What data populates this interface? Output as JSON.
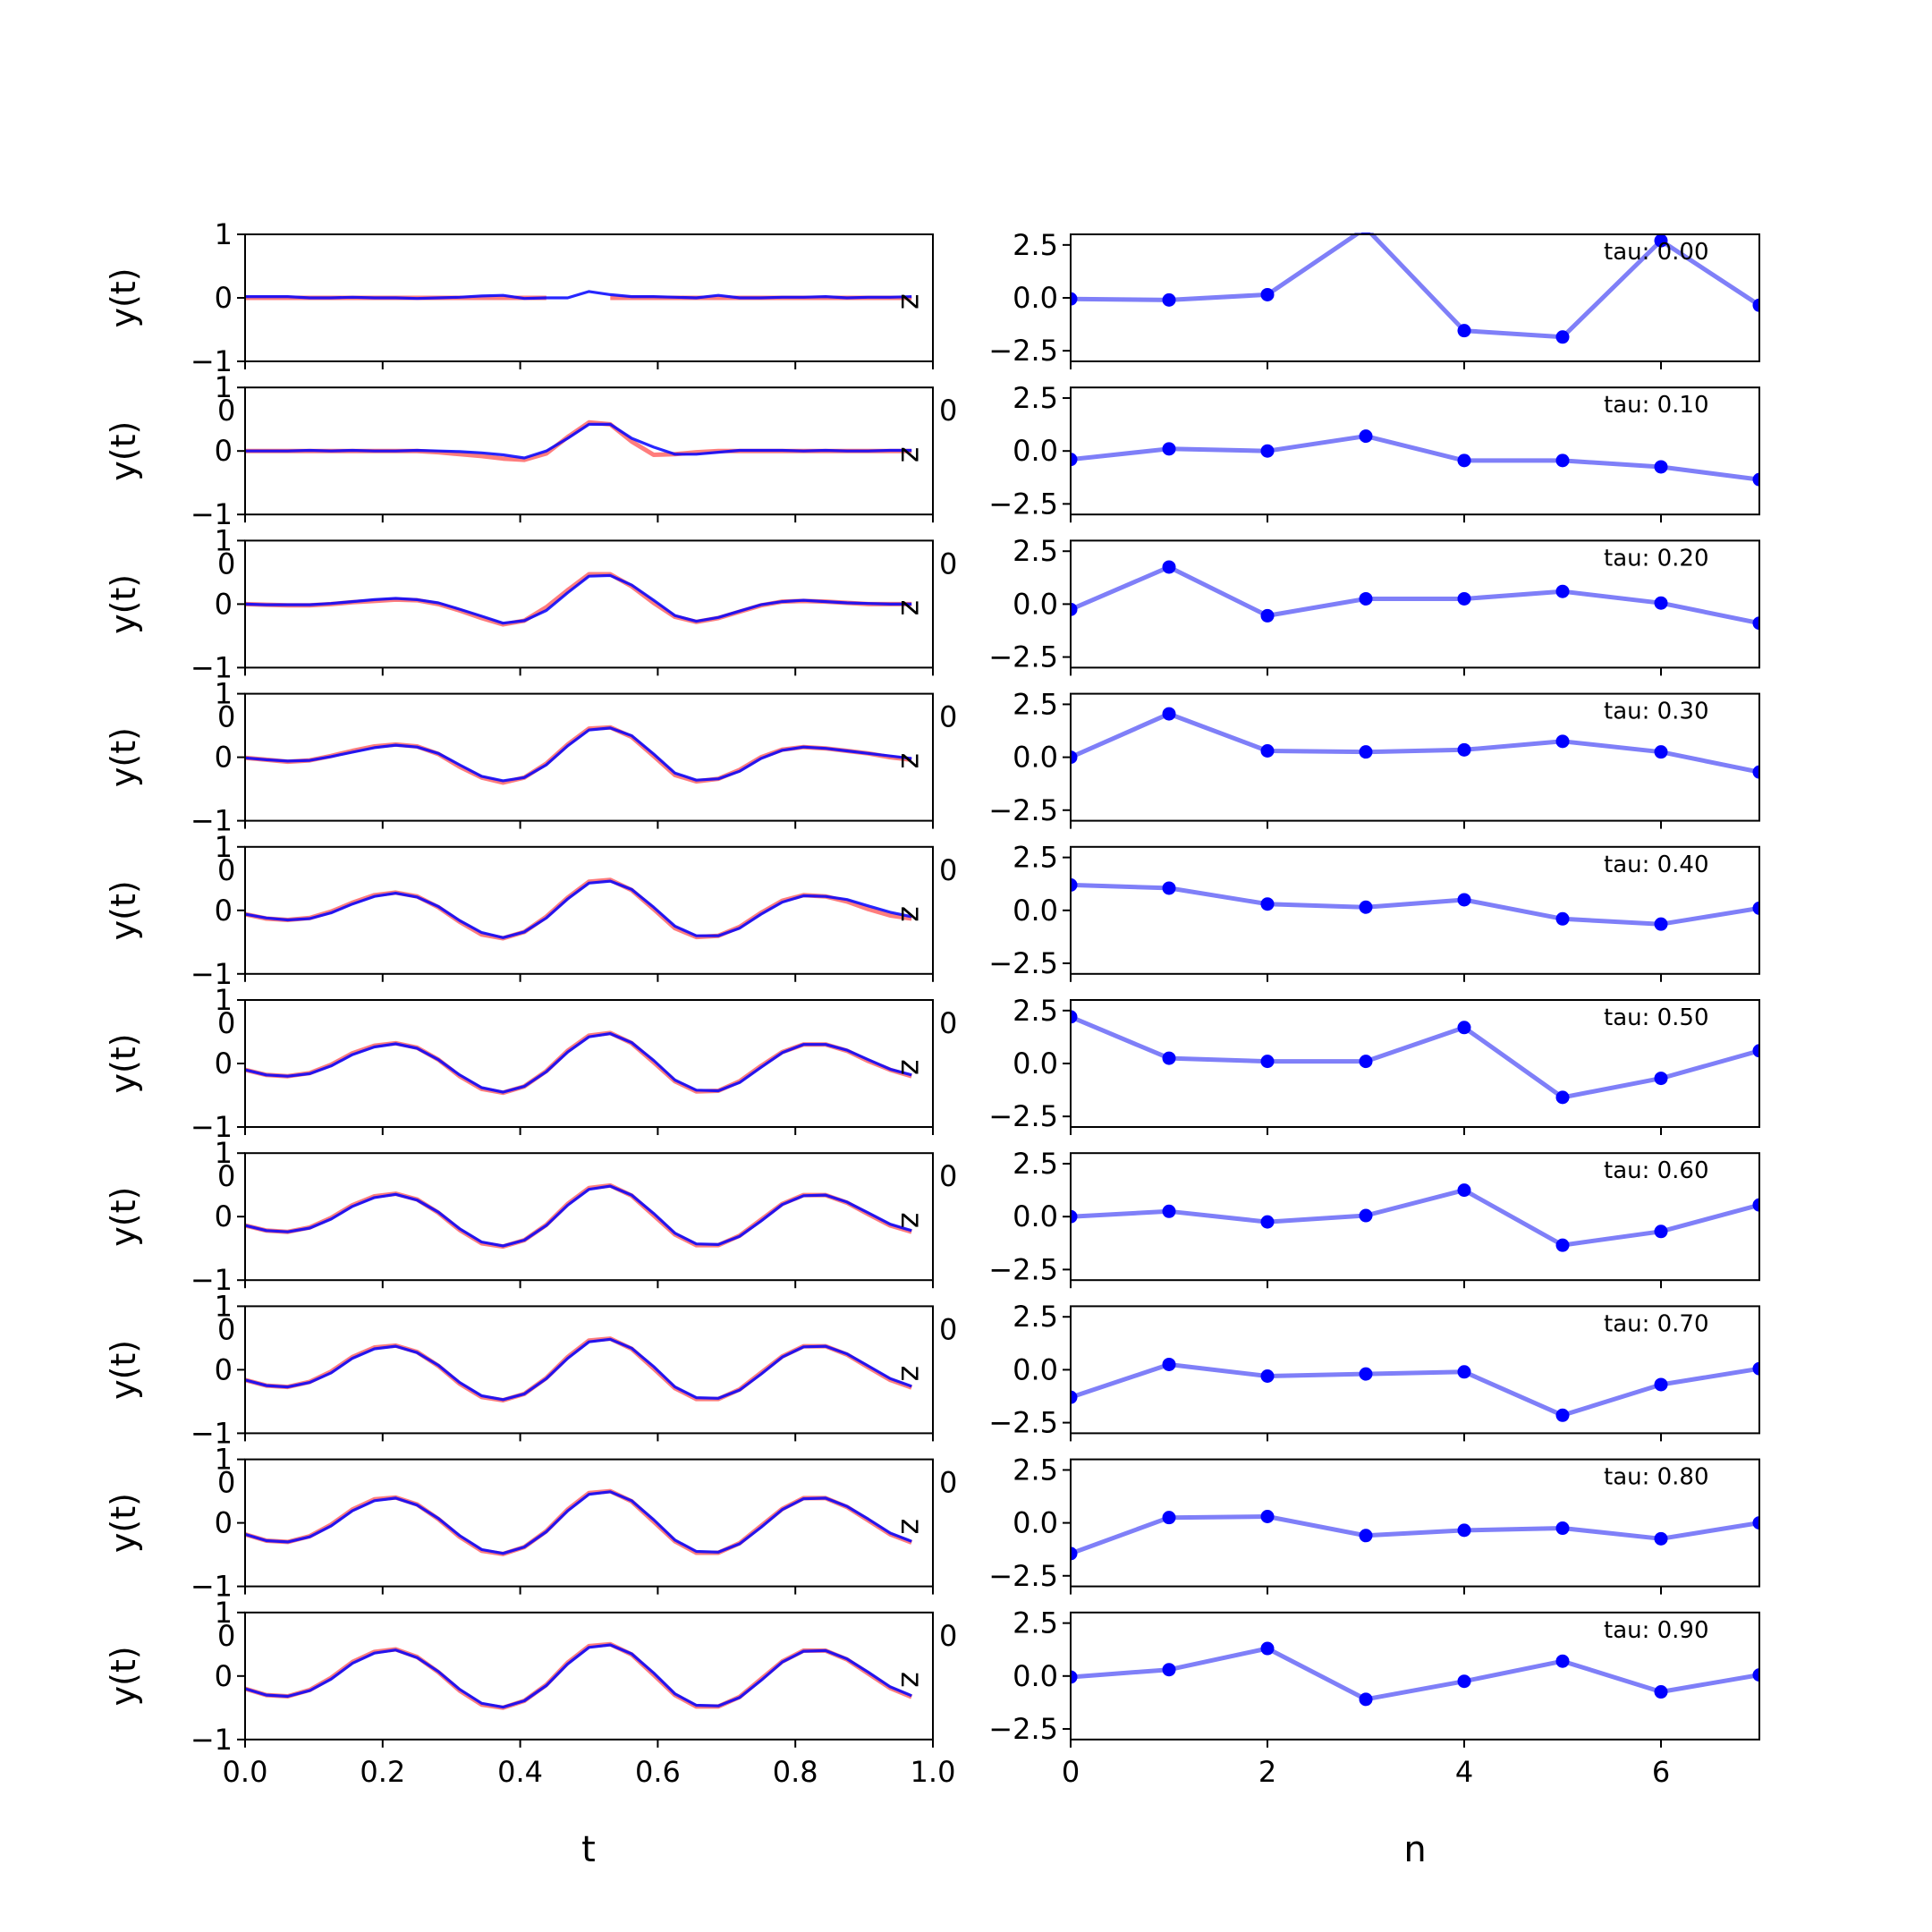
{
  "colors": {
    "reference": "#ff6f6f",
    "signal": "#0000ff",
    "coeff_line": "#7f7ff8",
    "coeff_point": "#0000ff"
  },
  "left_column": {
    "ylabel": "y(t)",
    "xlabel": "t",
    "yticks": [
      "−1",
      "0",
      "1"
    ],
    "xticks": [
      "0.0",
      "0.2",
      "0.4",
      "0.6",
      "0.8",
      "1.0"
    ],
    "overlap_tick": "0",
    "side_label": "z"
  },
  "right_column": {
    "xlabel": "n",
    "yticks": [
      "−2.5",
      "0.0",
      "2.5"
    ],
    "xticks": [
      "0",
      "2",
      "4",
      "6"
    ]
  },
  "chart_data": [
    {
      "type": "line",
      "panel": "time-domain",
      "xlabel": "t",
      "ylabel": "y(t)",
      "xlim": [
        0,
        1.0
      ],
      "ylim": [
        -1,
        1
      ],
      "x": [
        0.0,
        0.031,
        0.062,
        0.094,
        0.125,
        0.156,
        0.188,
        0.219,
        0.25,
        0.281,
        0.312,
        0.344,
        0.375,
        0.406,
        0.438,
        0.469,
        0.5,
        0.531,
        0.562,
        0.594,
        0.625,
        0.656,
        0.688,
        0.719,
        0.75,
        0.781,
        0.812,
        0.844,
        0.875,
        0.906,
        0.938,
        0.969
      ],
      "rows": [
        {
          "tau": "tau: 0.00",
          "reference": [
            0,
            0,
            0,
            0,
            0,
            0,
            0,
            0,
            0,
            0,
            0,
            0,
            0,
            0,
            0,
            null,
            null,
            0,
            0,
            0,
            0,
            0,
            0,
            0,
            0,
            0,
            0,
            0,
            0,
            0,
            0,
            0
          ],
          "signal": [
            0.02,
            0.02,
            0.02,
            0.0,
            0.0,
            0.01,
            0.0,
            0.0,
            -0.01,
            0.0,
            0.01,
            0.03,
            0.04,
            -0.01,
            0.0,
            0.0,
            0.1,
            0.05,
            0.02,
            0.02,
            0.01,
            0.0,
            0.04,
            0.0,
            0.0,
            0.01,
            0.01,
            0.02,
            0.0,
            0.01,
            0.01,
            0.02
          ]
        },
        {
          "tau": "tau: 0.10",
          "reference": [
            0,
            0,
            0,
            0,
            0,
            0,
            0,
            0,
            0,
            -0.02,
            -0.05,
            -0.08,
            -0.12,
            -0.14,
            -0.04,
            0.22,
            0.45,
            0.42,
            0.15,
            -0.06,
            -0.05,
            -0.02,
            0,
            0,
            0,
            0,
            0,
            0,
            0,
            0,
            0,
            0
          ],
          "signal": [
            0,
            0,
            0,
            0.01,
            0,
            0.01,
            0,
            0,
            0.01,
            0,
            -0.01,
            -0.03,
            -0.06,
            -0.11,
            0,
            0.2,
            0.42,
            0.42,
            0.2,
            0.06,
            -0.05,
            -0.05,
            -0.02,
            0.01,
            0.01,
            0.01,
            0,
            0.01,
            0,
            0,
            0.01,
            0.01
          ]
        },
        {
          "tau": "tau: 0.20",
          "reference": [
            0,
            -0.01,
            -0.02,
            -0.02,
            0,
            0.03,
            0.05,
            0.07,
            0.06,
            0.0,
            -0.1,
            -0.22,
            -0.32,
            -0.26,
            -0.05,
            0.22,
            0.47,
            0.47,
            0.28,
            0.02,
            -0.2,
            -0.28,
            -0.22,
            -0.12,
            -0.02,
            0.04,
            0.05,
            0.04,
            0.02,
            0.0,
            0.0,
            0.0
          ],
          "signal": [
            0,
            -0.01,
            -0.01,
            -0.01,
            0.01,
            0.04,
            0.07,
            0.09,
            0.07,
            0.02,
            -0.08,
            -0.19,
            -0.3,
            -0.26,
            -0.1,
            0.18,
            0.44,
            0.45,
            0.3,
            0.06,
            -0.18,
            -0.27,
            -0.21,
            -0.11,
            -0.01,
            0.04,
            0.06,
            0.04,
            0.02,
            0.01,
            0.0,
            0.0
          ]
        },
        {
          "tau": "tau: 0.30",
          "reference": [
            -0.01,
            -0.04,
            -0.07,
            -0.05,
            0.02,
            0.1,
            0.17,
            0.2,
            0.17,
            0.05,
            -0.15,
            -0.32,
            -0.4,
            -0.32,
            -0.1,
            0.2,
            0.45,
            0.47,
            0.32,
            0.02,
            -0.28,
            -0.38,
            -0.34,
            -0.2,
            0.0,
            0.12,
            0.16,
            0.14,
            0.1,
            0.06,
            0.0,
            -0.04
          ],
          "signal": [
            -0.01,
            -0.04,
            -0.06,
            -0.05,
            0.01,
            0.08,
            0.15,
            0.19,
            0.16,
            0.06,
            -0.12,
            -0.3,
            -0.37,
            -0.32,
            -0.12,
            0.18,
            0.43,
            0.46,
            0.34,
            0.05,
            -0.25,
            -0.36,
            -0.34,
            -0.22,
            -0.02,
            0.11,
            0.16,
            0.14,
            0.1,
            0.06,
            0.02,
            -0.02
          ]
        },
        {
          "tau": "tau: 0.40",
          "reference": [
            -0.06,
            -0.13,
            -0.15,
            -0.12,
            -0.02,
            0.12,
            0.24,
            0.28,
            0.22,
            0.05,
            -0.18,
            -0.38,
            -0.44,
            -0.34,
            -0.1,
            0.2,
            0.45,
            0.48,
            0.32,
            0.02,
            -0.28,
            -0.42,
            -0.4,
            -0.26,
            -0.04,
            0.15,
            0.24,
            0.22,
            0.14,
            0.02,
            -0.08,
            -0.13
          ],
          "signal": [
            -0.06,
            -0.12,
            -0.15,
            -0.13,
            -0.04,
            0.1,
            0.22,
            0.27,
            0.21,
            0.06,
            -0.16,
            -0.35,
            -0.43,
            -0.34,
            -0.12,
            0.18,
            0.43,
            0.46,
            0.33,
            0.05,
            -0.25,
            -0.4,
            -0.4,
            -0.28,
            -0.06,
            0.13,
            0.23,
            0.22,
            0.17,
            0.07,
            -0.03,
            -0.1
          ]
        },
        {
          "tau": "tau: 0.50",
          "reference": [
            -0.1,
            -0.18,
            -0.2,
            -0.15,
            -0.02,
            0.16,
            0.28,
            0.32,
            0.25,
            0.06,
            -0.2,
            -0.4,
            -0.46,
            -0.36,
            -0.12,
            0.2,
            0.44,
            0.48,
            0.32,
            0.02,
            -0.28,
            -0.44,
            -0.43,
            -0.28,
            -0.04,
            0.18,
            0.3,
            0.3,
            0.2,
            0.04,
            -0.1,
            -0.2
          ],
          "signal": [
            -0.1,
            -0.18,
            -0.2,
            -0.16,
            -0.04,
            0.14,
            0.26,
            0.31,
            0.24,
            0.06,
            -0.18,
            -0.38,
            -0.45,
            -0.36,
            -0.13,
            0.18,
            0.42,
            0.47,
            0.33,
            0.05,
            -0.26,
            -0.42,
            -0.43,
            -0.3,
            -0.06,
            0.17,
            0.3,
            0.3,
            0.21,
            0.06,
            -0.09,
            -0.18
          ]
        },
        {
          "tau": "tau: 0.60",
          "reference": [
            -0.14,
            -0.22,
            -0.24,
            -0.17,
            -0.02,
            0.18,
            0.32,
            0.36,
            0.27,
            0.06,
            -0.21,
            -0.42,
            -0.47,
            -0.37,
            -0.13,
            0.2,
            0.45,
            0.49,
            0.33,
            0.02,
            -0.28,
            -0.45,
            -0.45,
            -0.3,
            -0.05,
            0.2,
            0.34,
            0.34,
            0.22,
            0.04,
            -0.14,
            -0.24
          ],
          "signal": [
            -0.14,
            -0.22,
            -0.24,
            -0.18,
            -0.04,
            0.16,
            0.3,
            0.35,
            0.26,
            0.07,
            -0.19,
            -0.4,
            -0.46,
            -0.37,
            -0.14,
            0.18,
            0.43,
            0.48,
            0.34,
            0.05,
            -0.26,
            -0.43,
            -0.44,
            -0.31,
            -0.07,
            0.19,
            0.33,
            0.34,
            0.23,
            0.06,
            -0.12,
            -0.22
          ]
        },
        {
          "tau": "tau: 0.70",
          "reference": [
            -0.16,
            -0.25,
            -0.27,
            -0.19,
            -0.03,
            0.2,
            0.35,
            0.38,
            0.28,
            0.06,
            -0.22,
            -0.43,
            -0.48,
            -0.38,
            -0.13,
            0.2,
            0.46,
            0.49,
            0.33,
            0.02,
            -0.29,
            -0.46,
            -0.46,
            -0.31,
            -0.05,
            0.21,
            0.37,
            0.37,
            0.24,
            0.04,
            -0.16,
            -0.28
          ],
          "signal": [
            -0.16,
            -0.25,
            -0.27,
            -0.2,
            -0.05,
            0.18,
            0.33,
            0.37,
            0.27,
            0.07,
            -0.2,
            -0.41,
            -0.47,
            -0.38,
            -0.14,
            0.18,
            0.44,
            0.48,
            0.34,
            0.05,
            -0.27,
            -0.44,
            -0.45,
            -0.32,
            -0.07,
            0.2,
            0.36,
            0.37,
            0.25,
            0.06,
            -0.14,
            -0.26
          ]
        },
        {
          "tau": "tau: 0.80",
          "reference": [
            -0.18,
            -0.28,
            -0.3,
            -0.21,
            -0.03,
            0.21,
            0.37,
            0.4,
            0.29,
            0.06,
            -0.22,
            -0.44,
            -0.49,
            -0.38,
            -0.13,
            0.21,
            0.47,
            0.5,
            0.34,
            0.02,
            -0.29,
            -0.47,
            -0.47,
            -0.32,
            -0.05,
            0.22,
            0.39,
            0.39,
            0.25,
            0.04,
            -0.18,
            -0.31
          ],
          "signal": [
            -0.18,
            -0.28,
            -0.3,
            -0.22,
            -0.05,
            0.19,
            0.35,
            0.39,
            0.28,
            0.07,
            -0.2,
            -0.42,
            -0.48,
            -0.38,
            -0.14,
            0.19,
            0.45,
            0.49,
            0.35,
            0.05,
            -0.27,
            -0.45,
            -0.46,
            -0.33,
            -0.07,
            0.21,
            0.38,
            0.39,
            0.26,
            0.06,
            -0.16,
            -0.29
          ]
        },
        {
          "tau": "tau: 0.90",
          "reference": [
            -0.2,
            -0.3,
            -0.32,
            -0.22,
            -0.03,
            0.22,
            0.38,
            0.42,
            0.3,
            0.06,
            -0.23,
            -0.45,
            -0.5,
            -0.39,
            -0.14,
            0.21,
            0.47,
            0.5,
            0.34,
            0.02,
            -0.3,
            -0.48,
            -0.48,
            -0.33,
            -0.05,
            0.23,
            0.4,
            0.4,
            0.26,
            0.04,
            -0.19,
            -0.33
          ],
          "signal": [
            -0.2,
            -0.3,
            -0.32,
            -0.23,
            -0.05,
            0.2,
            0.36,
            0.41,
            0.29,
            0.07,
            -0.21,
            -0.43,
            -0.49,
            -0.39,
            -0.15,
            0.19,
            0.45,
            0.49,
            0.35,
            0.05,
            -0.28,
            -0.46,
            -0.47,
            -0.34,
            -0.07,
            0.22,
            0.39,
            0.4,
            0.27,
            0.06,
            -0.17,
            -0.31
          ]
        }
      ]
    },
    {
      "type": "line",
      "panel": "coefficients",
      "xlabel": "n",
      "xlim": [
        0,
        7
      ],
      "ylim": [
        -3,
        3
      ],
      "x": [
        0,
        1,
        2,
        3,
        4,
        5,
        6,
        7
      ],
      "rows": [
        {
          "tau": "tau: 0.00",
          "values": [
            -0.05,
            -0.1,
            0.15,
            3.3,
            -1.55,
            -1.85,
            2.7,
            -0.35
          ]
        },
        {
          "tau": "tau: 0.10",
          "values": [
            -0.4,
            0.1,
            0.0,
            0.7,
            -0.45,
            -0.45,
            -0.75,
            -1.35
          ]
        },
        {
          "tau": "tau: 0.20",
          "values": [
            -0.25,
            1.75,
            -0.55,
            0.25,
            0.25,
            0.6,
            0.05,
            -0.9
          ]
        },
        {
          "tau": "tau: 0.30",
          "values": [
            0.0,
            2.05,
            0.3,
            0.25,
            0.35,
            0.75,
            0.25,
            -0.7
          ]
        },
        {
          "tau": "tau: 0.40",
          "values": [
            1.2,
            1.05,
            0.3,
            0.15,
            0.5,
            -0.4,
            -0.65,
            0.1
          ]
        },
        {
          "tau": "tau: 0.50",
          "values": [
            2.2,
            0.25,
            0.1,
            0.1,
            1.7,
            -1.6,
            -0.7,
            0.6
          ]
        },
        {
          "tau": "tau: 0.60",
          "values": [
            0.0,
            0.25,
            -0.25,
            0.05,
            1.25,
            -1.35,
            -0.7,
            0.55
          ]
        },
        {
          "tau": "tau: 0.70",
          "values": [
            -1.3,
            0.25,
            -0.3,
            -0.2,
            -0.1,
            -2.15,
            -0.7,
            0.05
          ]
        },
        {
          "tau": "tau: 0.80",
          "values": [
            -1.45,
            0.25,
            0.3,
            -0.6,
            -0.35,
            -0.25,
            -0.75,
            0.0
          ]
        },
        {
          "tau": "tau: 0.90",
          "values": [
            -0.05,
            0.3,
            1.3,
            -1.1,
            -0.25,
            0.7,
            -0.75,
            0.05
          ]
        }
      ]
    }
  ]
}
